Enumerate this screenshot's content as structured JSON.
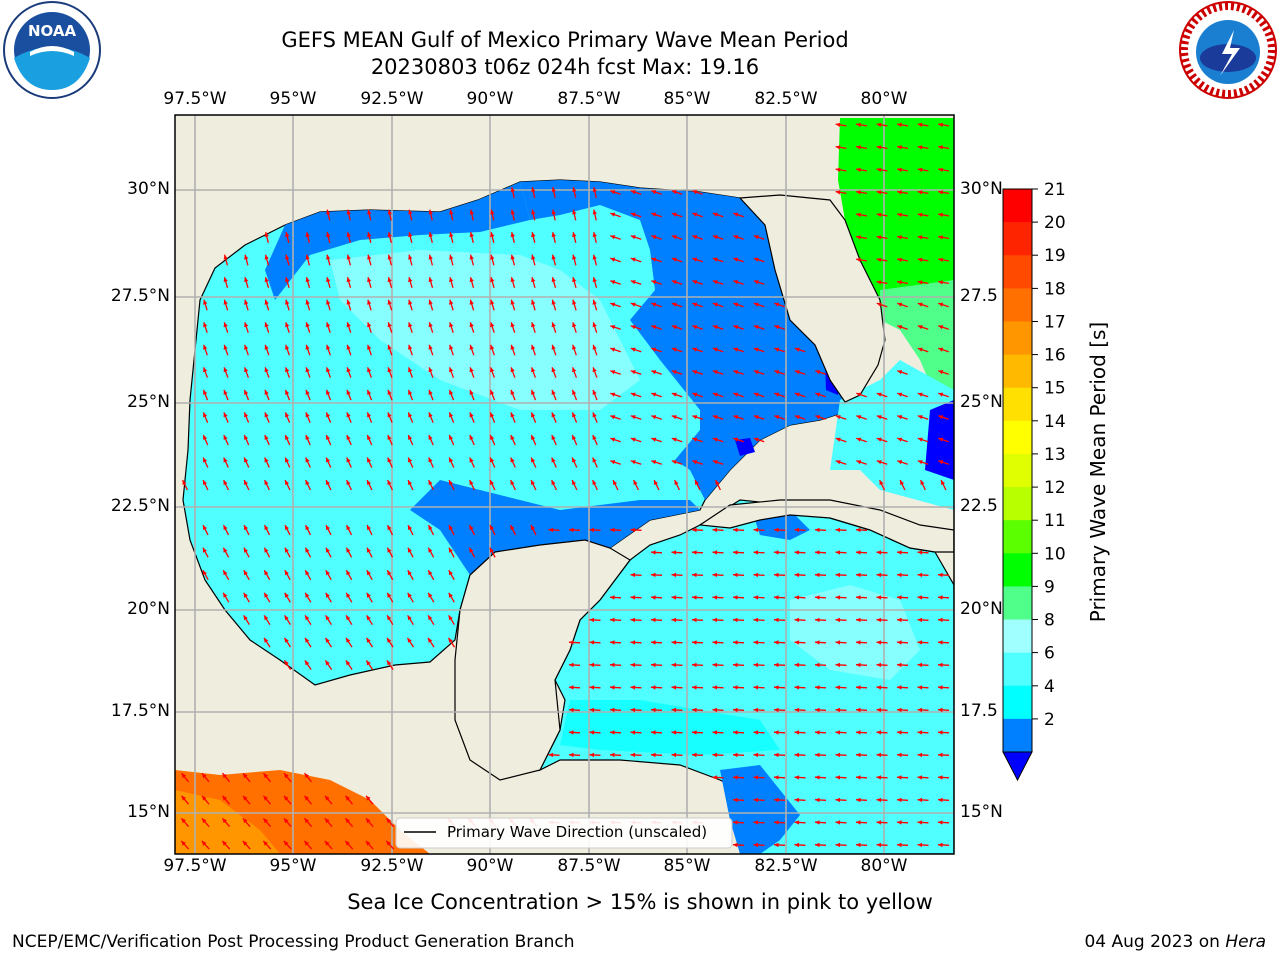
{
  "title": {
    "line1": "GEFS MEAN Gulf of Mexico Primary Wave Mean Period",
    "line2": "20230803 t06z 024h fcst   Max: 19.16"
  },
  "caption": "Sea Ice Concentration > 15% is shown in pink to yellow",
  "footer": {
    "left": "NCEP/EMC/Verification Post Processing Product Generation Branch",
    "right_date": "04 Aug 2023 on",
    "right_host": "Hera"
  },
  "logos": {
    "noara_text": "NOAA",
    "nws_text": "NATIONAL WEATHER SERVICE"
  },
  "map": {
    "lon_labels": [
      "97.5°W",
      "95°W",
      "92.5°W",
      "90°W",
      "87.5°W",
      "85°W",
      "82.5°W",
      "80°W"
    ],
    "lat_labels_left": [
      "30°N",
      "27.5°N",
      "25°N",
      "22.5°N",
      "20°N",
      "17.5°N",
      "15°N"
    ],
    "lat_labels_right": [
      "30°N",
      "27.5",
      "25°N",
      "22.5",
      "20°N",
      "17.5",
      "15°N"
    ],
    "legend_label": "Primary Wave Direction (unscaled)"
  },
  "colorbar": {
    "label": "Primary Wave Mean Period [s]",
    "ticks": [
      "21",
      "20",
      "19",
      "18",
      "17",
      "16",
      "15",
      "14",
      "13",
      "12",
      "11",
      "10",
      "9",
      "8",
      "6",
      "4",
      "2"
    ],
    "colors": [
      "#ff0000",
      "#ff2400",
      "#ff4a00",
      "#ff7000",
      "#ff9600",
      "#ffba00",
      "#ffe000",
      "#ffff00",
      "#e0ff00",
      "#b8ff00",
      "#5cff00",
      "#00ff00",
      "#50ff8a",
      "#a0ffff",
      "#50ffff",
      "#00ffff",
      "#0080ff"
    ],
    "under_color": "#0000ff"
  },
  "colors": {
    "land": "#efedde",
    "arrow": "#ff0000",
    "grid": "#b0b0b0"
  }
}
